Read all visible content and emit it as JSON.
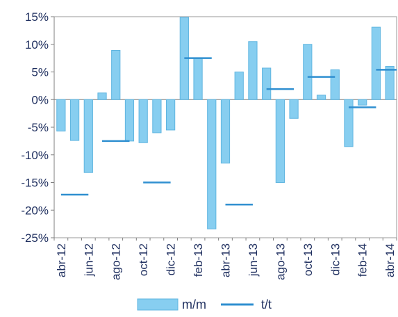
{
  "chart_data": {
    "type": "bar",
    "title": "",
    "xlabel": "",
    "ylabel": "",
    "ylim": [
      -25,
      15
    ],
    "y_ticks": [
      15,
      10,
      5,
      0,
      -5,
      -10,
      -15,
      -20,
      -25
    ],
    "y_tick_labels": [
      "15%",
      "10%",
      "5%",
      "0%",
      "-5%",
      "-10%",
      "-15%",
      "-20%",
      "-25%"
    ],
    "categories": [
      "abr-12",
      "may-12",
      "jun-12",
      "jul-12",
      "ago-12",
      "sep-12",
      "oct-12",
      "nov-12",
      "dic-12",
      "ene-13",
      "feb-13",
      "mar-13",
      "abr-13",
      "may-13",
      "jun-13",
      "jul-13",
      "ago-13",
      "sep-13",
      "oct-13",
      "nov-13",
      "dic-13",
      "ene-14",
      "feb-14",
      "mar-14",
      "abr-14"
    ],
    "x_tick_labels": [
      "abr-12",
      "jun-12",
      "ago-12",
      "oct-12",
      "dic-12",
      "feb-13",
      "abr-13",
      "jun-13",
      "ago-13",
      "oct-13",
      "dic-13",
      "feb-14",
      "abr-14"
    ],
    "x_tick_indices": [
      0,
      2,
      4,
      6,
      8,
      10,
      12,
      14,
      16,
      18,
      20,
      22,
      24
    ],
    "series": [
      {
        "name": "m/m",
        "kind": "bar",
        "color": "#87cef0",
        "stroke": "#5fb5e0",
        "values": [
          -5.7,
          -7.4,
          -13.2,
          1.2,
          8.9,
          -7.5,
          -7.8,
          -6.0,
          -5.5,
          14.9,
          7.5,
          -23.4,
          -11.5,
          5.0,
          10.5,
          5.7,
          -15.0,
          -3.4,
          10.0,
          0.8,
          5.4,
          -8.5,
          -1.0,
          13.1,
          6.0
        ]
      },
      {
        "name": "t/t",
        "kind": "quarter-marker",
        "color": "#2f8fd0",
        "points": [
          {
            "index": 1,
            "value": -17.2
          },
          {
            "index": 4,
            "value": -7.5
          },
          {
            "index": 7,
            "value": -15.0
          },
          {
            "index": 10,
            "value": 7.5
          },
          {
            "index": 13,
            "value": -19.0
          },
          {
            "index": 16,
            "value": 1.9
          },
          {
            "index": 19,
            "value": 4.1
          },
          {
            "index": 22,
            "value": -1.4
          },
          {
            "index": 24,
            "value": 5.4
          }
        ]
      }
    ],
    "grid": false,
    "legend_position": "bottom",
    "legend": [
      {
        "label": "m/m",
        "symbol": "bar"
      },
      {
        "label": "t/t",
        "symbol": "line"
      }
    ]
  }
}
